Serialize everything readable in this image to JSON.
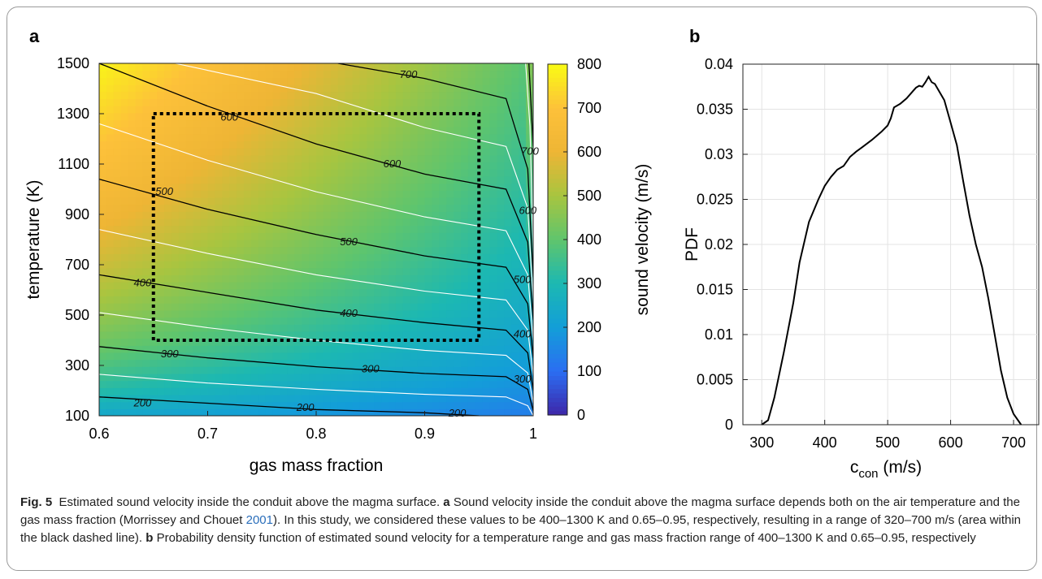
{
  "chart_data": [
    {
      "type": "heatmap",
      "panel_label": "a",
      "xlabel": "gas mass fraction",
      "ylabel": "temperature (K)",
      "xlim": [
        0.6,
        1.0
      ],
      "ylim": [
        100,
        1500
      ],
      "x_ticks": [
        "0.6",
        "0.7",
        "0.8",
        "0.9",
        "1"
      ],
      "y_ticks": [
        "100",
        "300",
        "500",
        "700",
        "900",
        "1100",
        "1300",
        "1500"
      ],
      "colorbar": {
        "label": "sound velocity (m/s)",
        "range": [
          0,
          800
        ],
        "ticks": [
          "0",
          "100",
          "200",
          "300",
          "400",
          "500",
          "600",
          "700",
          "800"
        ],
        "colormap": [
          "#3e26a8",
          "#2b6ef2",
          "#139ed8",
          "#1cb8b2",
          "#5fc56d",
          "#a7c540",
          "#eeb535",
          "#fdc13a",
          "#f9fb14"
        ]
      },
      "contours": [
        {
          "level": 200,
          "label": "200",
          "color": "#000000",
          "points": [
            [
              0.6,
              175
            ],
            [
              0.7,
              150
            ],
            [
              0.8,
              125
            ],
            [
              0.9,
              112
            ],
            [
              0.95,
              100
            ]
          ]
        },
        {
          "level": 250,
          "label": "",
          "color": "#ffffff",
          "points": [
            [
              0.6,
              265
            ],
            [
              0.7,
              230
            ],
            [
              0.8,
              205
            ],
            [
              0.9,
              185
            ],
            [
              0.975,
              175
            ],
            [
              0.995,
              140
            ],
            [
              1.0,
              100
            ]
          ]
        },
        {
          "level": 300,
          "label": "300",
          "color": "#000000",
          "points": [
            [
              0.6,
              375
            ],
            [
              0.7,
              330
            ],
            [
              0.8,
              295
            ],
            [
              0.9,
              268
            ],
            [
              0.975,
              255
            ],
            [
              0.995,
              205
            ],
            [
              1.0,
              120
            ]
          ]
        },
        {
          "level": 350,
          "label": "",
          "color": "#ffffff",
          "points": [
            [
              0.6,
              510
            ],
            [
              0.7,
              450
            ],
            [
              0.8,
              400
            ],
            [
              0.9,
              360
            ],
            [
              0.975,
              340
            ],
            [
              0.995,
              270
            ],
            [
              1.0,
              150
            ]
          ]
        },
        {
          "level": 400,
          "label": "400",
          "color": "#000000",
          "points": [
            [
              0.6,
              660
            ],
            [
              0.7,
              590
            ],
            [
              0.8,
              520
            ],
            [
              0.9,
              470
            ],
            [
              0.975,
              440
            ],
            [
              0.995,
              350
            ],
            [
              1.0,
              200
            ]
          ]
        },
        {
          "level": 450,
          "label": "",
          "color": "#ffffff",
          "points": [
            [
              0.6,
              840
            ],
            [
              0.7,
              745
            ],
            [
              0.8,
              660
            ],
            [
              0.9,
              595
            ],
            [
              0.975,
              560
            ],
            [
              0.995,
              440
            ],
            [
              1.0,
              260
            ]
          ]
        },
        {
          "level": 500,
          "label": "500",
          "color": "#000000",
          "points": [
            [
              0.6,
              1040
            ],
            [
              0.7,
              920
            ],
            [
              0.8,
              820
            ],
            [
              0.9,
              735
            ],
            [
              0.975,
              690
            ],
            [
              0.995,
              545
            ],
            [
              1.0,
              330
            ]
          ]
        },
        {
          "level": 550,
          "label": "",
          "color": "#ffffff",
          "points": [
            [
              0.6,
              1260
            ],
            [
              0.7,
              1115
            ],
            [
              0.8,
              990
            ],
            [
              0.9,
              890
            ],
            [
              0.975,
              835
            ],
            [
              0.995,
              660
            ],
            [
              1.0,
              400
            ]
          ]
        },
        {
          "level": 600,
          "label": "600",
          "color": "#000000",
          "points": [
            [
              0.6,
              1500
            ],
            [
              0.7,
              1330
            ],
            [
              0.8,
              1180
            ],
            [
              0.9,
              1060
            ],
            [
              0.975,
              1000
            ],
            [
              0.995,
              790
            ],
            [
              1.0,
              480
            ]
          ]
        },
        {
          "level": 650,
          "label": "",
          "color": "#ffffff",
          "points": [
            [
              0.67,
              1500
            ],
            [
              0.8,
              1380
            ],
            [
              0.9,
              1245
            ],
            [
              0.975,
              1170
            ],
            [
              0.995,
              925
            ],
            [
              1.0,
              560
            ]
          ]
        },
        {
          "level": 700,
          "label": "700",
          "color": "#000000",
          "points": [
            [
              0.82,
              1500
            ],
            [
              0.9,
              1440
            ],
            [
              0.975,
              1360
            ],
            [
              0.995,
              1080
            ],
            [
              1.0,
              650
            ]
          ]
        },
        {
          "level": 750,
          "label": "",
          "color": "#ffffff",
          "points": [
            [
              0.993,
              1500
            ],
            [
              0.997,
              1250
            ],
            [
              1.0,
              760
            ]
          ]
        },
        {
          "level": 800,
          "label": "",
          "color": "#000000",
          "points": [
            [
              0.996,
              1500
            ],
            [
              1.0,
              1170
            ]
          ]
        }
      ],
      "contour_labels": [
        {
          "text": "200",
          "x": 0.64,
          "y": 150
        },
        {
          "text": "200",
          "x": 0.79,
          "y": 133
        },
        {
          "text": "200",
          "x": 0.93,
          "y": 110
        },
        {
          "text": "300",
          "x": 0.665,
          "y": 345
        },
        {
          "text": "300",
          "x": 0.85,
          "y": 285
        },
        {
          "text": "300",
          "x": 0.99,
          "y": 245
        },
        {
          "text": "400",
          "x": 0.64,
          "y": 628
        },
        {
          "text": "400",
          "x": 0.83,
          "y": 507
        },
        {
          "text": "400",
          "x": 0.99,
          "y": 425
        },
        {
          "text": "500",
          "x": 0.66,
          "y": 990
        },
        {
          "text": "500",
          "x": 0.83,
          "y": 790
        },
        {
          "text": "500",
          "x": 0.99,
          "y": 640
        },
        {
          "text": "600",
          "x": 0.72,
          "y": 1285
        },
        {
          "text": "600",
          "x": 0.87,
          "y": 1100
        },
        {
          "text": "600",
          "x": 0.995,
          "y": 915
        },
        {
          "text": "700",
          "x": 0.885,
          "y": 1455
        },
        {
          "text": "700",
          "x": 0.997,
          "y": 1150
        }
      ],
      "highlight_region": {
        "x": [
          0.65,
          0.95
        ],
        "y": [
          400,
          1300
        ],
        "style": "dotted"
      }
    },
    {
      "type": "line",
      "panel_label": "b",
      "xlabel": "c",
      "xlabel_sub": "con",
      "xlabel_unit": " (m/s)",
      "ylabel": "PDF",
      "xlim": [
        270,
        740
      ],
      "ylim": [
        0,
        0.04
      ],
      "x_ticks": [
        "300",
        "400",
        "500",
        "600",
        "700"
      ],
      "y_ticks": [
        "0",
        "0.005",
        "0.01",
        "0.015",
        "0.02",
        "0.025",
        "0.03",
        "0.035",
        "0.04"
      ],
      "grid": true,
      "x": [
        300,
        310,
        320,
        335,
        350,
        360,
        375,
        390,
        400,
        410,
        420,
        430,
        440,
        450,
        460,
        475,
        490,
        500,
        505,
        510,
        520,
        530,
        540,
        545,
        550,
        555,
        560,
        565,
        570,
        575,
        580,
        590,
        600,
        610,
        620,
        630,
        640,
        650,
        660,
        670,
        680,
        690,
        700,
        712
      ],
      "values": [
        0,
        0.0005,
        0.003,
        0.008,
        0.0135,
        0.018,
        0.0225,
        0.025,
        0.0265,
        0.0275,
        0.0283,
        0.0287,
        0.0297,
        0.0303,
        0.0308,
        0.0316,
        0.0325,
        0.0332,
        0.034,
        0.0352,
        0.0356,
        0.0362,
        0.037,
        0.0374,
        0.0376,
        0.0375,
        0.038,
        0.0386,
        0.038,
        0.0378,
        0.0372,
        0.036,
        0.0335,
        0.031,
        0.027,
        0.0232,
        0.02,
        0.0175,
        0.014,
        0.01,
        0.006,
        0.003,
        0.0012,
        0
      ]
    }
  ],
  "caption": {
    "fig_label": "Fig. 5",
    "title": "Estimated sound velocity inside the conduit above the magma surface.",
    "a_label": "a",
    "a_text_1": "Sound velocity inside the conduit above the magma surface depends both on the air temperature and the gas mass fraction (Morrissey and Chouet ",
    "a_ref_year": "2001",
    "a_text_2": "). In this study, we considered these values to be 400–1300 K and 0.65–0.95, respectively, resulting in a range of 320–700 m/s (area within the black dashed line).",
    "b_label": "b",
    "b_text": "Probability density function of estimated sound velocity for a temperature range and gas mass fraction range of 400–1300 K and 0.65–0.95, respectively"
  }
}
